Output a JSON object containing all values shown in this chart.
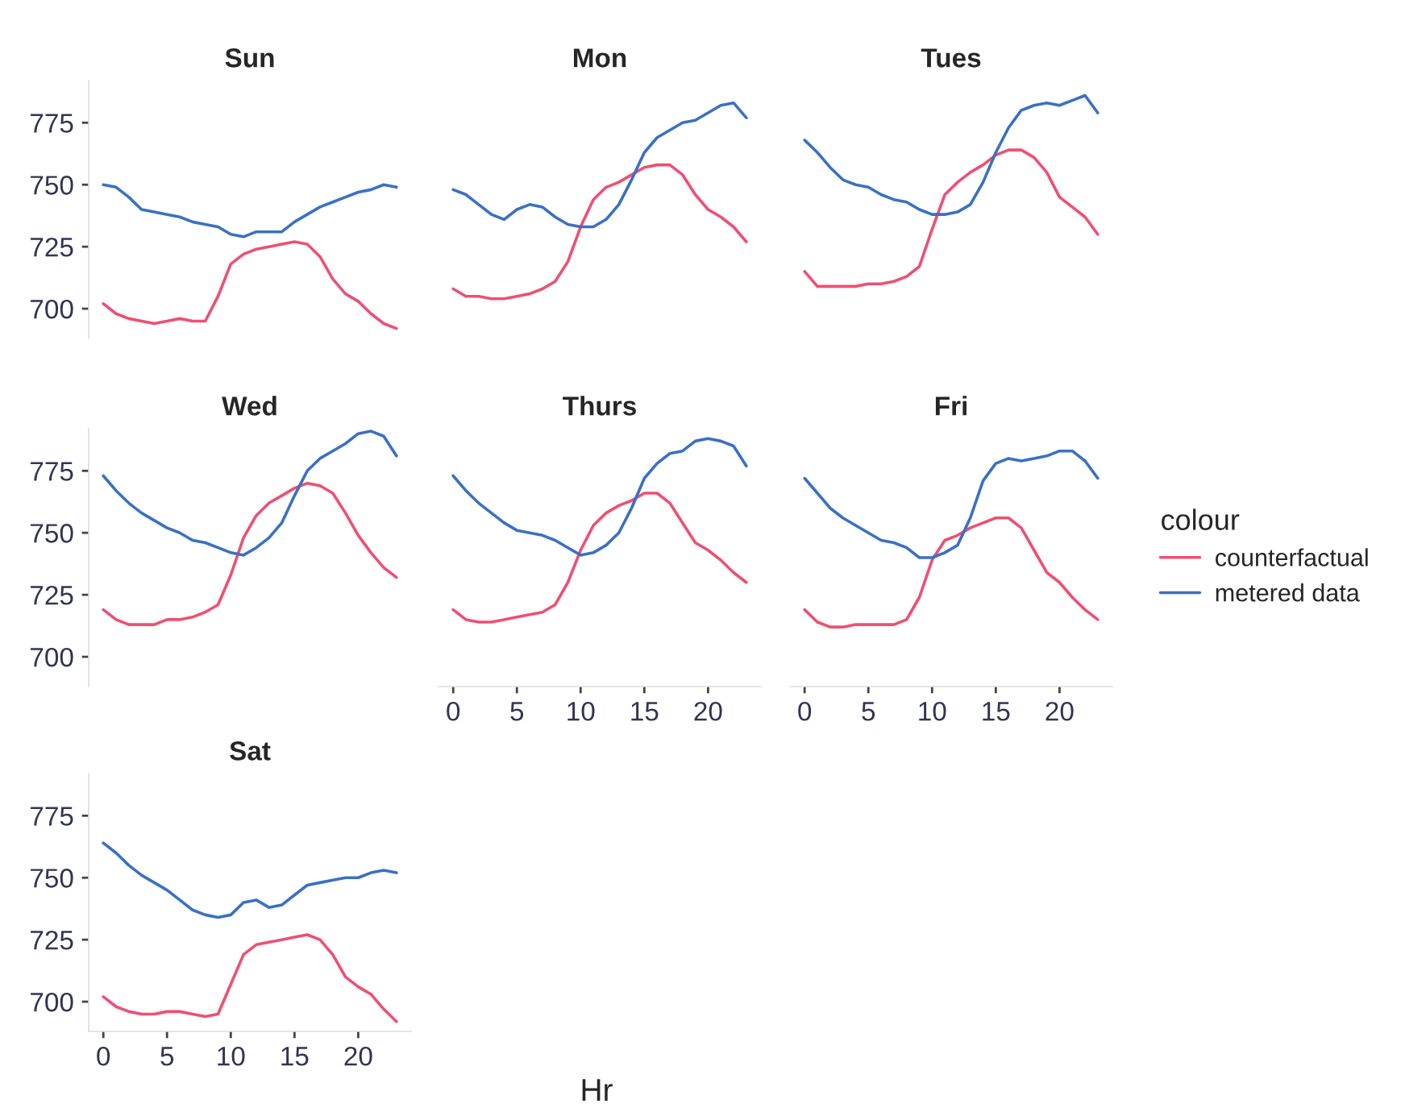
{
  "chart_data": [
    {
      "type": "line",
      "title": "Sun",
      "x": [
        0,
        1,
        2,
        3,
        4,
        5,
        6,
        7,
        8,
        9,
        10,
        11,
        12,
        13,
        14,
        15,
        16,
        17,
        18,
        19,
        20,
        21,
        22,
        23
      ],
      "ylim": [
        688,
        792
      ],
      "xticks": [
        0,
        5,
        10,
        15,
        20
      ],
      "yticks": [
        700,
        725,
        750,
        775
      ],
      "tick_labels": "y",
      "series": [
        {
          "color": "#ef4f72",
          "values": [
            702,
            698,
            696,
            695,
            694,
            695,
            696,
            695,
            695,
            705,
            718,
            722,
            724,
            725,
            726,
            727,
            726,
            721,
            712,
            706,
            703,
            698,
            694,
            692
          ]
        },
        {
          "color": "#3a70c5",
          "values": [
            750,
            749,
            745,
            740,
            739,
            738,
            737,
            735,
            734,
            733,
            730,
            729,
            731,
            731,
            731,
            735,
            738,
            741,
            743,
            745,
            747,
            748,
            750,
            749
          ]
        }
      ]
    },
    {
      "type": "line",
      "title": "Mon",
      "x": [
        0,
        1,
        2,
        3,
        4,
        5,
        6,
        7,
        8,
        9,
        10,
        11,
        12,
        13,
        14,
        15,
        16,
        17,
        18,
        19,
        20,
        21,
        22,
        23
      ],
      "xticks": [
        0,
        5,
        10,
        15,
        20
      ],
      "yticks": [
        700,
        725,
        750,
        775
      ],
      "tick_labels": false,
      "series": [
        {
          "color": "#ef4f72",
          "values": [
            708,
            705,
            705,
            704,
            704,
            705,
            706,
            708,
            711,
            719,
            733,
            744,
            749,
            751,
            754,
            757,
            758,
            758,
            754,
            746,
            740,
            737,
            733,
            727
          ]
        },
        {
          "color": "#3a70c5",
          "values": [
            748,
            746,
            742,
            738,
            736,
            740,
            742,
            741,
            737,
            734,
            733,
            733,
            736,
            742,
            752,
            763,
            769,
            772,
            775,
            776,
            779,
            782,
            783,
            777
          ]
        }
      ]
    },
    {
      "type": "line",
      "title": "Tues",
      "x": [
        0,
        1,
        2,
        3,
        4,
        5,
        6,
        7,
        8,
        9,
        10,
        11,
        12,
        13,
        14,
        15,
        16,
        17,
        18,
        19,
        20,
        21,
        22,
        23
      ],
      "xticks": [
        0,
        5,
        10,
        15,
        20
      ],
      "yticks": [
        700,
        725,
        750,
        775
      ],
      "tick_labels": false,
      "series": [
        {
          "color": "#ef4f72",
          "values": [
            715,
            709,
            709,
            709,
            709,
            710,
            710,
            711,
            713,
            717,
            732,
            746,
            751,
            755,
            758,
            762,
            764,
            764,
            761,
            755,
            745,
            741,
            737,
            730
          ]
        },
        {
          "color": "#3a70c5",
          "values": [
            768,
            763,
            757,
            752,
            750,
            749,
            746,
            744,
            743,
            740,
            738,
            738,
            739,
            742,
            751,
            763,
            773,
            780,
            782,
            783,
            782,
            784,
            786,
            779
          ]
        }
      ]
    },
    {
      "type": "line",
      "title": "Wed",
      "x": [
        0,
        1,
        2,
        3,
        4,
        5,
        6,
        7,
        8,
        9,
        10,
        11,
        12,
        13,
        14,
        15,
        16,
        17,
        18,
        19,
        20,
        21,
        22,
        23
      ],
      "ylim": [
        688,
        792
      ],
      "xticks": [
        0,
        5,
        10,
        15,
        20
      ],
      "yticks": [
        700,
        725,
        750,
        775
      ],
      "tick_labels": "y",
      "series": [
        {
          "color": "#ef4f72",
          "values": [
            719,
            715,
            713,
            713,
            713,
            715,
            715,
            716,
            718,
            721,
            733,
            748,
            757,
            762,
            765,
            768,
            770,
            769,
            766,
            758,
            749,
            742,
            736,
            732
          ]
        },
        {
          "color": "#3a70c5",
          "values": [
            773,
            767,
            762,
            758,
            755,
            752,
            750,
            747,
            746,
            744,
            742,
            741,
            744,
            748,
            754,
            765,
            775,
            780,
            783,
            786,
            790,
            791,
            789,
            781
          ]
        }
      ]
    },
    {
      "type": "line",
      "title": "Thurs",
      "xlabel": "Hr",
      "x": [
        0,
        1,
        2,
        3,
        4,
        5,
        6,
        7,
        8,
        9,
        10,
        11,
        12,
        13,
        14,
        15,
        16,
        17,
        18,
        19,
        20,
        21,
        22,
        23
      ],
      "xlim": [
        -1.15,
        24.15
      ],
      "xticks": [
        0,
        5,
        10,
        15,
        20
      ],
      "yticks": [
        700,
        725,
        750,
        775
      ],
      "tick_labels": "x",
      "series": [
        {
          "color": "#ef4f72",
          "values": [
            719,
            715,
            714,
            714,
            715,
            716,
            717,
            718,
            721,
            730,
            743,
            753,
            758,
            761,
            763,
            766,
            766,
            762,
            754,
            746,
            743,
            739,
            734,
            730
          ]
        },
        {
          "color": "#3a70c5",
          "values": [
            773,
            767,
            762,
            758,
            754,
            751,
            750,
            749,
            747,
            744,
            741,
            742,
            745,
            750,
            760,
            772,
            778,
            782,
            783,
            787,
            788,
            787,
            785,
            777
          ]
        }
      ]
    },
    {
      "type": "line",
      "title": "Fri",
      "x": [
        0,
        1,
        2,
        3,
        4,
        5,
        6,
        7,
        8,
        9,
        10,
        11,
        12,
        13,
        14,
        15,
        16,
        17,
        18,
        19,
        20,
        21,
        22,
        23
      ],
      "xlim": [
        -1.15,
        24.15
      ],
      "xticks": [
        0,
        5,
        10,
        15,
        20
      ],
      "yticks": [
        700,
        725,
        750,
        775
      ],
      "tick_labels": "x",
      "legend": "right",
      "legend_title": "colour",
      "series": [
        {
          "name": "counterfactual",
          "color": "#ef4f72",
          "values": [
            719,
            714,
            712,
            712,
            713,
            713,
            713,
            713,
            715,
            724,
            739,
            747,
            749,
            752,
            754,
            756,
            756,
            752,
            743,
            734,
            730,
            724,
            719,
            715
          ]
        },
        {
          "name": "metered data",
          "color": "#3a70c5",
          "values": [
            772,
            766,
            760,
            756,
            753,
            750,
            747,
            746,
            744,
            740,
            740,
            742,
            745,
            756,
            771,
            778,
            780,
            779,
            780,
            781,
            783,
            783,
            779,
            772
          ]
        }
      ]
    },
    {
      "type": "line",
      "title": "Sat",
      "x": [
        0,
        1,
        2,
        3,
        4,
        5,
        6,
        7,
        8,
        9,
        10,
        11,
        12,
        13,
        14,
        15,
        16,
        17,
        18,
        19,
        20,
        21,
        22,
        23
      ],
      "xlim": [
        -1.15,
        24.15
      ],
      "ylim": [
        688,
        792
      ],
      "xticks": [
        0,
        5,
        10,
        15,
        20
      ],
      "yticks": [
        700,
        725,
        750,
        775
      ],
      "series": [
        {
          "color": "#ef4f72",
          "values": [
            702,
            698,
            696,
            695,
            695,
            696,
            696,
            695,
            694,
            695,
            707,
            719,
            723,
            724,
            725,
            726,
            727,
            725,
            719,
            710,
            706,
            703,
            697,
            692
          ]
        },
        {
          "color": "#3a70c5",
          "values": [
            764,
            760,
            755,
            751,
            748,
            745,
            741,
            737,
            735,
            734,
            735,
            740,
            741,
            738,
            739,
            743,
            747,
            748,
            749,
            750,
            750,
            752,
            753,
            752
          ]
        }
      ]
    }
  ]
}
